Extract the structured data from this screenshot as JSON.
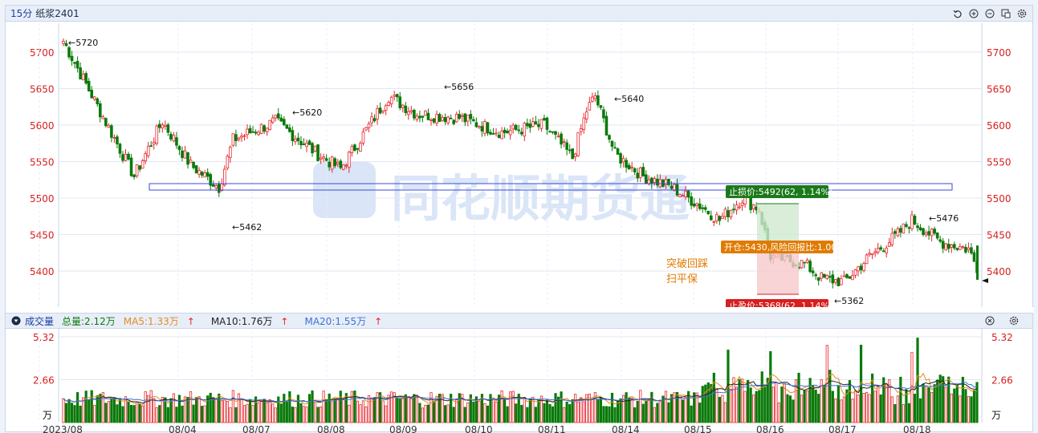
{
  "header": {
    "period": "15分",
    "symbol": "纸浆2401",
    "icons": [
      "undo-icon",
      "zoom-in-icon",
      "zoom-out-icon",
      "window-icon",
      "settings-icon"
    ]
  },
  "price_axis": {
    "ticks": [
      "5700",
      "5650",
      "5600",
      "5550",
      "5500",
      "5450",
      "5400"
    ]
  },
  "annotations": {
    "high_5720": "5720",
    "low_5462": "5462",
    "high_5620": "5620",
    "high_5656": "5656",
    "high_5640": "5640",
    "low_5362": "5362",
    "high_5476": "5476",
    "stop_loss": "止损价:5492(62, 1.14%)",
    "open_pos": "开仓:5430,风险回报比:1.00",
    "take_profit": "止盈价:5368(62, 1.14%)",
    "note_line1": "突破回踩",
    "note_line2": "扫平保"
  },
  "volume_bar": {
    "title": "成交量",
    "total": "总量:2.12万",
    "ma5": "MA5:1.33万",
    "ma10": "MA10:1.76万",
    "ma20": "MA20:1.55万",
    "ticks": [
      "5.32",
      "2.66"
    ],
    "unit": "万"
  },
  "date_axis": [
    "2023/08",
    "08/04",
    "08/07",
    "08/08",
    "08/09",
    "08/10",
    "08/11",
    "08/14",
    "08/15",
    "08/16",
    "08/17",
    "08/18"
  ],
  "watermark": "同花顺期货通",
  "colors": {
    "up": "#e8262d",
    "down": "#0b7a0b",
    "ma5": "#e88a1a",
    "ma10": "#222222",
    "ma20": "#3a73d8",
    "stop": "#1a7a1a",
    "open": "#e07b00",
    "profit": "#d81e1e"
  }
}
